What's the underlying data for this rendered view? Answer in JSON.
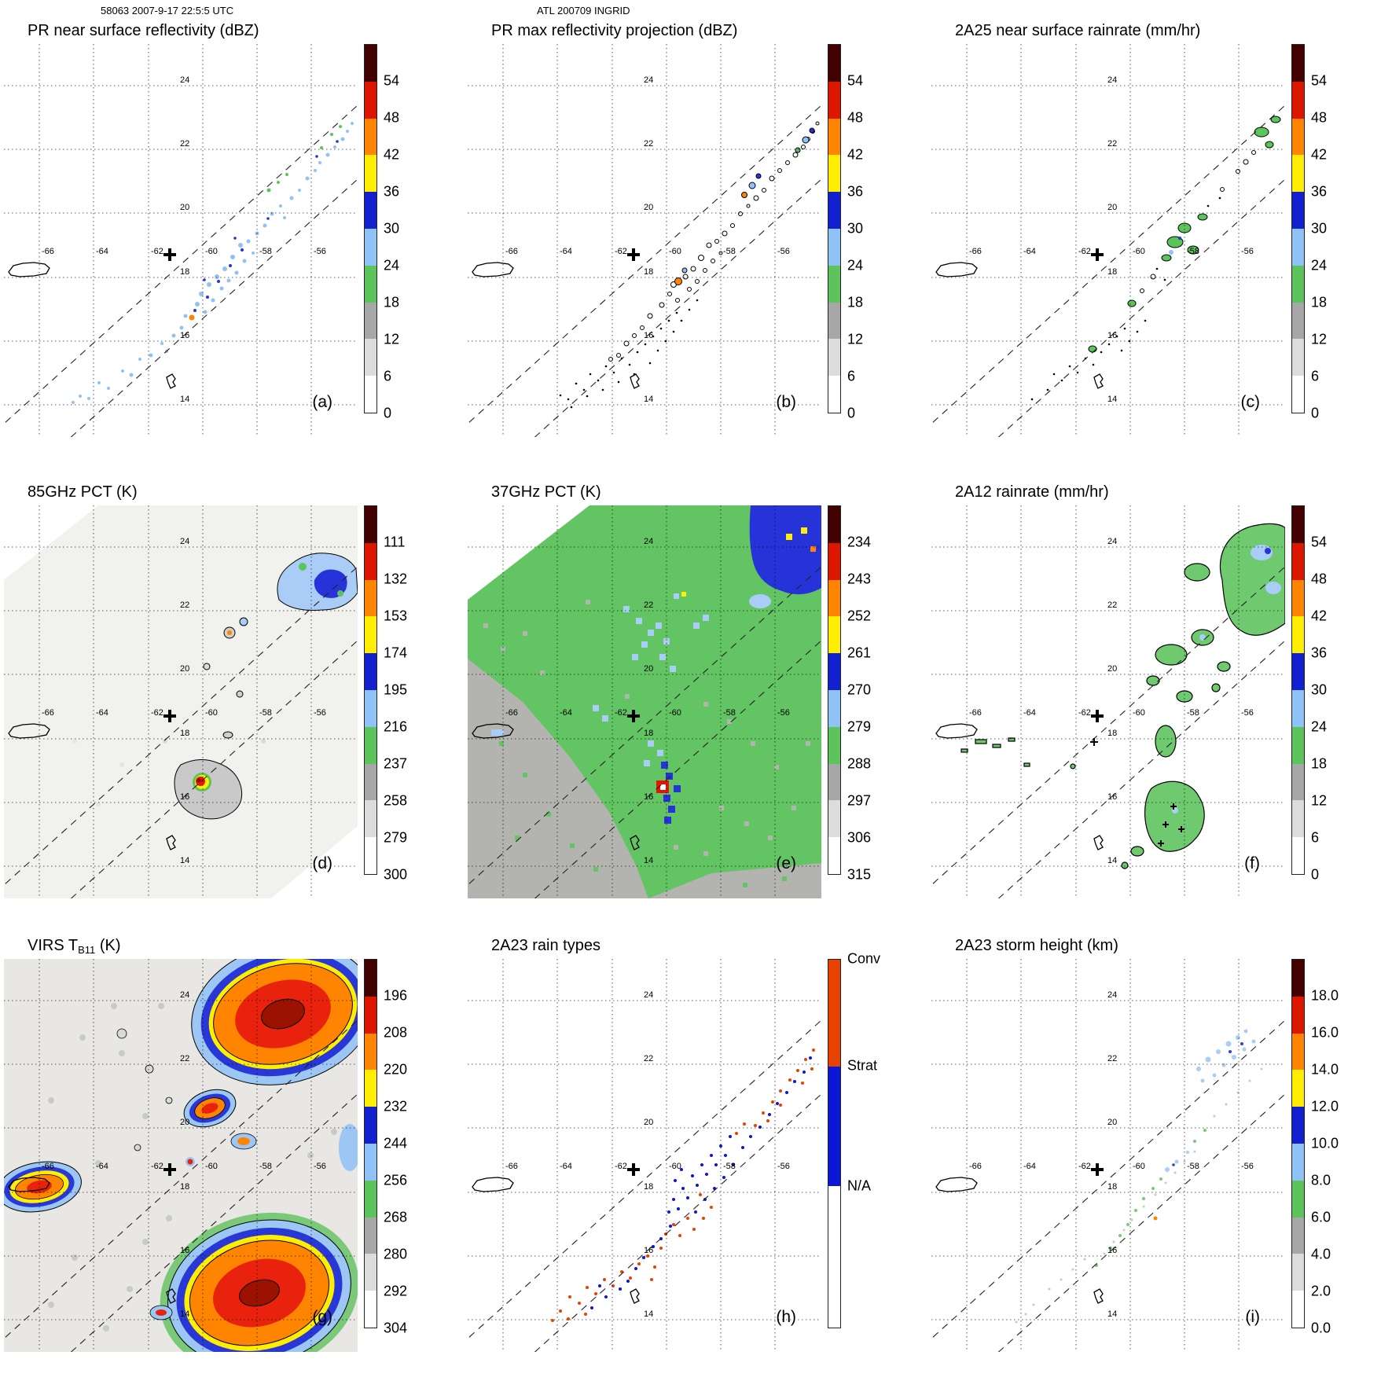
{
  "header": {
    "left": "58063 2007-9-17 22:5:5 UTC",
    "center": "ATL 200709 INGRID"
  },
  "map": {
    "lat_labels": [
      "24",
      "22",
      "20",
      "18",
      "16",
      "14"
    ],
    "lon_labels": [
      "-66",
      "-64",
      "-62",
      "-60",
      "-58",
      "-56"
    ]
  },
  "panels": [
    {
      "letter": "(a)",
      "title": "PR near surface reflectivity (dBZ)",
      "colorbar": {
        "ticks": [
          "54",
          "48",
          "42",
          "36",
          "30",
          "24",
          "18",
          "12",
          "6",
          "0"
        ],
        "colors": [
          "#420000",
          "#dd1600",
          "#ff8400",
          "#ffee00",
          "#1320d0",
          "#8fc3f7",
          "#5bc55b",
          "#a7a7a7",
          "#dcdcdc",
          "#ffffff"
        ]
      }
    },
    {
      "letter": "(b)",
      "title": "PR max reflectivity projection (dBZ)",
      "colorbar": {
        "ticks": [
          "54",
          "48",
          "42",
          "36",
          "30",
          "24",
          "18",
          "12",
          "6",
          "0"
        ],
        "colors": [
          "#420000",
          "#dd1600",
          "#ff8400",
          "#ffee00",
          "#1320d0",
          "#8fc3f7",
          "#5bc55b",
          "#a7a7a7",
          "#dcdcdc",
          "#ffffff"
        ]
      }
    },
    {
      "letter": "(c)",
      "title": "2A25 near surface rainrate (mm/hr)",
      "colorbar": {
        "ticks": [
          "54",
          "48",
          "42",
          "36",
          "30",
          "24",
          "18",
          "12",
          "6",
          "0"
        ],
        "colors": [
          "#420000",
          "#dd1600",
          "#ff8400",
          "#ffee00",
          "#1320d0",
          "#8fc3f7",
          "#5bc55b",
          "#a7a7a7",
          "#dcdcdc",
          "#ffffff"
        ]
      }
    },
    {
      "letter": "(d)",
      "title": "85GHz PCT (K)",
      "colorbar": {
        "ticks": [
          "111",
          "132",
          "153",
          "174",
          "195",
          "216",
          "237",
          "258",
          "279",
          "300"
        ],
        "colors": [
          "#420000",
          "#dd1600",
          "#ff8400",
          "#ffee00",
          "#1320d0",
          "#8fc3f7",
          "#5bc55b",
          "#a7a7a7",
          "#dcdcdc",
          "#ffffff"
        ]
      }
    },
    {
      "letter": "(e)",
      "title": "37GHz PCT (K)",
      "colorbar": {
        "ticks": [
          "234",
          "243",
          "252",
          "261",
          "270",
          "279",
          "288",
          "297",
          "306",
          "315"
        ],
        "colors": [
          "#420000",
          "#dd1600",
          "#ff8400",
          "#ffee00",
          "#1320d0",
          "#8fc3f7",
          "#5bc55b",
          "#a7a7a7",
          "#dcdcdc",
          "#ffffff"
        ]
      }
    },
    {
      "letter": "(f)",
      "title": "2A12 rainrate (mm/hr)",
      "colorbar": {
        "ticks": [
          "54",
          "48",
          "42",
          "36",
          "30",
          "24",
          "18",
          "12",
          "6",
          "0"
        ],
        "colors": [
          "#420000",
          "#dd1600",
          "#ff8400",
          "#ffee00",
          "#1320d0",
          "#8fc3f7",
          "#5bc55b",
          "#a7a7a7",
          "#dcdcdc",
          "#ffffff"
        ]
      }
    },
    {
      "letter": "(g)",
      "title_pre": "VIRS T",
      "title_sub": "B11",
      "title_suf": " (K)",
      "colorbar": {
        "ticks": [
          "196",
          "208",
          "220",
          "232",
          "244",
          "256",
          "268",
          "280",
          "292",
          "304"
        ],
        "colors": [
          "#420000",
          "#dd1600",
          "#ff8400",
          "#ffee00",
          "#1320d0",
          "#8fc3f7",
          "#5bc55b",
          "#a7a7a7",
          "#dcdcdc",
          "#ffffff"
        ]
      }
    },
    {
      "letter": "(h)",
      "title": "2A23 rain types",
      "colorbar": {
        "segments": [
          {
            "label": "Conv",
            "color": "#e84200",
            "frac": 0.29
          },
          {
            "label": "Strat",
            "color": "#0b16d6",
            "frac": 0.325
          },
          {
            "label": "N/A",
            "color": "#ffffff",
            "frac": 0.385
          }
        ]
      }
    },
    {
      "letter": "(i)",
      "title": "2A23 storm height (km)",
      "colorbar": {
        "ticks": [
          "18.0",
          "16.0",
          "14.0",
          "12.0",
          "10.0",
          "8.0",
          "6.0",
          "4.0",
          "2.0",
          "0.0"
        ],
        "colors": [
          "#420000",
          "#dd1600",
          "#ff8400",
          "#ffee00",
          "#1320d0",
          "#8fc3f7",
          "#5bc55b",
          "#a7a7a7",
          "#dcdcdc",
          "#ffffff"
        ]
      }
    }
  ]
}
